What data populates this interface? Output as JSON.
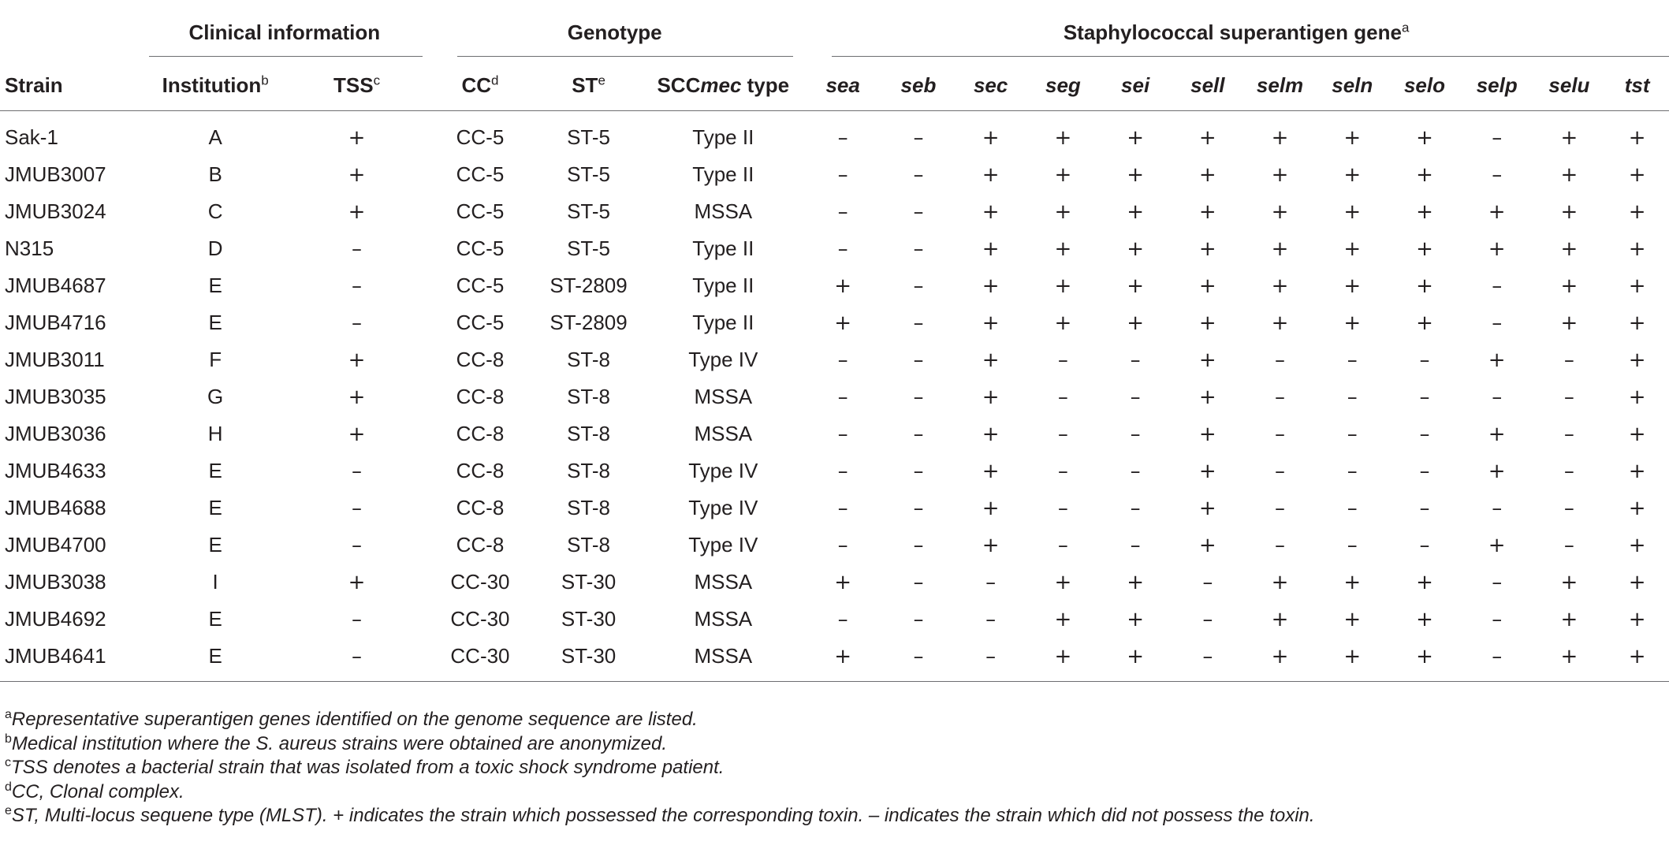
{
  "groups": {
    "clinical": "Clinical information",
    "genotype": "Genotype",
    "superantigen": "Staphylococcal superantigen gene",
    "superantigen_sup": "a"
  },
  "columns": {
    "strain": "Strain",
    "institution": "Institution",
    "institution_sup": "b",
    "tss": "TSS",
    "tss_sup": "c",
    "cc": "CC",
    "cc_sup": "d",
    "st": "ST",
    "st_sup": "e",
    "scc_prefix": "SCC",
    "scc_italic": "mec",
    "scc_suffix": " type",
    "genes": [
      "sea",
      "seb",
      "sec",
      "seg",
      "sei",
      "sell",
      "selm",
      "seln",
      "selo",
      "selp",
      "selu",
      "tst"
    ]
  },
  "rows": [
    {
      "strain": "Sak-1",
      "inst": "A",
      "tss": "+",
      "cc": "CC-5",
      "st": "ST-5",
      "scc": "Type II",
      "g": [
        "–",
        "–",
        "+",
        "+",
        "+",
        "+",
        "+",
        "+",
        "+",
        "–",
        "+",
        "+"
      ]
    },
    {
      "strain": "JMUB3007",
      "inst": "B",
      "tss": "+",
      "cc": "CC-5",
      "st": "ST-5",
      "scc": "Type II",
      "g": [
        "–",
        "–",
        "+",
        "+",
        "+",
        "+",
        "+",
        "+",
        "+",
        "–",
        "+",
        "+"
      ]
    },
    {
      "strain": "JMUB3024",
      "inst": "C",
      "tss": "+",
      "cc": "CC-5",
      "st": "ST-5",
      "scc": "MSSA",
      "g": [
        "–",
        "–",
        "+",
        "+",
        "+",
        "+",
        "+",
        "+",
        "+",
        "+",
        "+",
        "+"
      ]
    },
    {
      "strain": "N315",
      "inst": "D",
      "tss": "–",
      "cc": "CC-5",
      "st": "ST-5",
      "scc": "Type II",
      "g": [
        "–",
        "–",
        "+",
        "+",
        "+",
        "+",
        "+",
        "+",
        "+",
        "+",
        "+",
        "+"
      ]
    },
    {
      "strain": "JMUB4687",
      "inst": "E",
      "tss": "–",
      "cc": "CC-5",
      "st": "ST-2809",
      "scc": "Type II",
      "g": [
        "+",
        "–",
        "+",
        "+",
        "+",
        "+",
        "+",
        "+",
        "+",
        "–",
        "+",
        "+"
      ]
    },
    {
      "strain": "JMUB4716",
      "inst": "E",
      "tss": "–",
      "cc": "CC-5",
      "st": "ST-2809",
      "scc": "Type II",
      "g": [
        "+",
        "–",
        "+",
        "+",
        "+",
        "+",
        "+",
        "+",
        "+",
        "–",
        "+",
        "+"
      ]
    },
    {
      "strain": "JMUB3011",
      "inst": "F",
      "tss": "+",
      "cc": "CC-8",
      "st": "ST-8",
      "scc": "Type IV",
      "g": [
        "–",
        "–",
        "+",
        "–",
        "–",
        "+",
        "–",
        "–",
        "–",
        "+",
        "–",
        "+"
      ]
    },
    {
      "strain": "JMUB3035",
      "inst": "G",
      "tss": "+",
      "cc": "CC-8",
      "st": "ST-8",
      "scc": "MSSA",
      "g": [
        "–",
        "–",
        "+",
        "–",
        "–",
        "+",
        "–",
        "–",
        "–",
        "–",
        "–",
        "+"
      ]
    },
    {
      "strain": "JMUB3036",
      "inst": "H",
      "tss": "+",
      "cc": "CC-8",
      "st": "ST-8",
      "scc": "MSSA",
      "g": [
        "–",
        "–",
        "+",
        "–",
        "–",
        "+",
        "–",
        "–",
        "–",
        "+",
        "–",
        "+"
      ]
    },
    {
      "strain": "JMUB4633",
      "inst": "E",
      "tss": "–",
      "cc": "CC-8",
      "st": "ST-8",
      "scc": "Type IV",
      "g": [
        "–",
        "–",
        "+",
        "–",
        "–",
        "+",
        "–",
        "–",
        "–",
        "+",
        "–",
        "+"
      ]
    },
    {
      "strain": "JMUB4688",
      "inst": "E",
      "tss": "–",
      "cc": "CC-8",
      "st": "ST-8",
      "scc": "Type IV",
      "g": [
        "–",
        "–",
        "+",
        "–",
        "–",
        "+",
        "–",
        "–",
        "–",
        "–",
        "–",
        "+"
      ]
    },
    {
      "strain": "JMUB4700",
      "inst": "E",
      "tss": "–",
      "cc": "CC-8",
      "st": "ST-8",
      "scc": "Type IV",
      "g": [
        "–",
        "–",
        "+",
        "–",
        "–",
        "+",
        "–",
        "–",
        "–",
        "+",
        "–",
        "+"
      ]
    },
    {
      "strain": "JMUB3038",
      "inst": "I",
      "tss": "+",
      "cc": "CC-30",
      "st": "ST-30",
      "scc": "MSSA",
      "g": [
        "+",
        "–",
        "–",
        "+",
        "+",
        "–",
        "+",
        "+",
        "+",
        "–",
        "+",
        "+"
      ]
    },
    {
      "strain": "JMUB4692",
      "inst": "E",
      "tss": "–",
      "cc": "CC-30",
      "st": "ST-30",
      "scc": "MSSA",
      "g": [
        "–",
        "–",
        "–",
        "+",
        "+",
        "–",
        "+",
        "+",
        "+",
        "–",
        "+",
        "+"
      ]
    },
    {
      "strain": "JMUB4641",
      "inst": "E",
      "tss": "–",
      "cc": "CC-30",
      "st": "ST-30",
      "scc": "MSSA",
      "g": [
        "+",
        "–",
        "–",
        "+",
        "+",
        "–",
        "+",
        "+",
        "+",
        "–",
        "+",
        "+"
      ]
    }
  ],
  "footnotes": [
    {
      "sup": "a",
      "text": "Representative superantigen genes identified on the genome sequence are listed."
    },
    {
      "sup": "b",
      "text": "Medical institution where the S. aureus strains were obtained are anonymized."
    },
    {
      "sup": "c",
      "text": "TSS denotes a bacterial strain that was isolated from a toxic shock syndrome patient."
    },
    {
      "sup": "d",
      "text": "CC, Clonal complex."
    },
    {
      "sup": "e",
      "text": "ST, Multi-locus sequene type (MLST). + indicates the strain which possessed the corresponding toxin. – indicates the strain which did not possess the toxin."
    }
  ]
}
